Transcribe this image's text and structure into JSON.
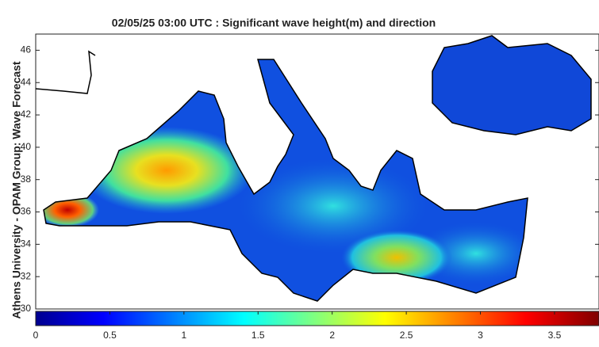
{
  "header": {
    "title": "02/05/25 03:00 UTC : Significant wave height(m) and direction",
    "side_label": "Athens University - OPAM Group: Wave Forecast"
  },
  "map": {
    "ylim": [
      30,
      47
    ],
    "yticks": [
      30,
      32,
      34,
      36,
      38,
      40,
      42,
      44,
      46
    ]
  },
  "colorbar": {
    "clim": [
      0,
      3.8
    ],
    "ticks": [
      0,
      0.5,
      1,
      1.5,
      2,
      2.5,
      3,
      3.5
    ]
  }
}
